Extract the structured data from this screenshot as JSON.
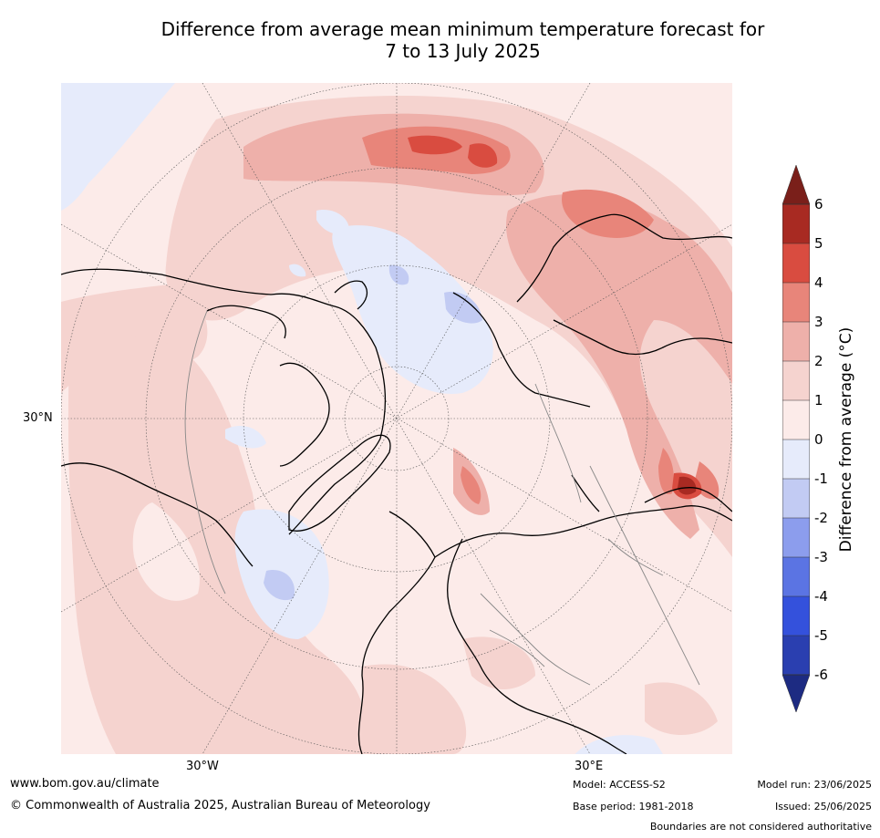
{
  "title": {
    "line1": "Difference from average mean minimum temperature forecast for",
    "line2": "7 to 13 July 2025"
  },
  "map": {
    "projection": "north-polar-stereographic",
    "lat_label": "30°N",
    "lon_labels": [
      "30°W",
      "30°E"
    ]
  },
  "legend": {
    "title": "Difference from average (°C)",
    "ticks": [
      "6",
      "5",
      "4",
      "3",
      "2",
      "1",
      "0",
      "-1",
      "-2",
      "-3",
      "-4",
      "-5",
      "-6"
    ],
    "colors": {
      "ext_high": "#7a1f1a",
      "5_6": "#a82a22",
      "4_5": "#d94c40",
      "3_4": "#e8857a",
      "2_3": "#eeb0aa",
      "1_2": "#f5d3cf",
      "0_1": "#fcebe9",
      "m1_0": "#e6ebfb",
      "m2_m1": "#c2cbf3",
      "m3_m2": "#8c9ded",
      "m4_m3": "#5b74e3",
      "m5_m4": "#3451dc",
      "m6_m5": "#2a3fb0",
      "ext_low": "#1d2b82"
    }
  },
  "footer": {
    "website": "www.bom.gov.au/climate",
    "copyright": "© Commonwealth of Australia 2025, Australian Bureau of Meteorology",
    "model": "Model: ACCESS-S2",
    "base_period": "Base period: 1981-2018",
    "model_run": "Model run: 23/06/2025",
    "issued": "Issued: 25/06/2025",
    "disclaimer": "Boundaries are not considered authoritative"
  }
}
